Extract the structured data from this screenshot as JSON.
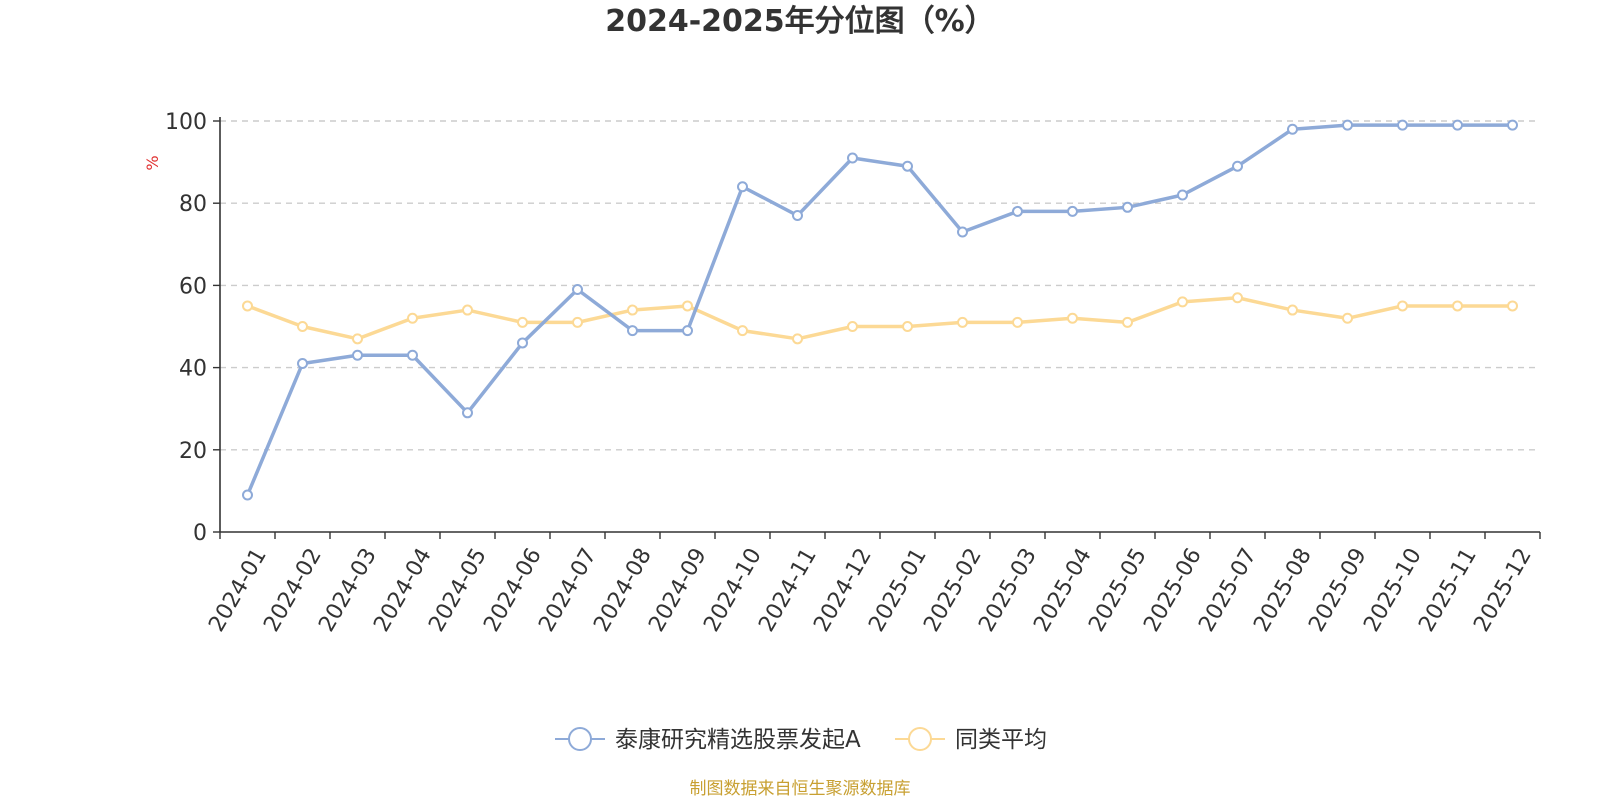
{
  "chart_data": {
    "type": "line",
    "title": "2024-2025年分位图（%）",
    "ylabel": "%",
    "xlabel": "",
    "ylim": [
      0,
      100
    ],
    "yticks": [
      0,
      20,
      40,
      60,
      80,
      100
    ],
    "grid": true,
    "legend_position": "bottom",
    "categories": [
      "2024-01",
      "2024-02",
      "2024-03",
      "2024-04",
      "2024-05",
      "2024-06",
      "2024-07",
      "2024-08",
      "2024-09",
      "2024-10",
      "2024-11",
      "2024-12",
      "2025-01",
      "2025-02",
      "2025-03",
      "2025-04",
      "2025-05",
      "2025-06",
      "2025-07",
      "2025-08",
      "2025-09",
      "2025-10",
      "2025-11",
      "2025-12"
    ],
    "series": [
      {
        "name": "泰康研究精选股票发起A",
        "color": "#8eaad8",
        "values": [
          9,
          41,
          43,
          43,
          29,
          46,
          59,
          49,
          49,
          84,
          77,
          91,
          89,
          73,
          78,
          78,
          79,
          82,
          89,
          98,
          99,
          99,
          99,
          99
        ]
      },
      {
        "name": "同类平均",
        "color": "#fcd995",
        "values": [
          55,
          50,
          47,
          52,
          54,
          51,
          51,
          54,
          55,
          49,
          47,
          50,
          50,
          51,
          51,
          52,
          51,
          56,
          57,
          54,
          52,
          55,
          55,
          55
        ]
      }
    ]
  },
  "source": {
    "text": "制图数据来自恒生聚源数据库",
    "color": "#c8a032"
  }
}
